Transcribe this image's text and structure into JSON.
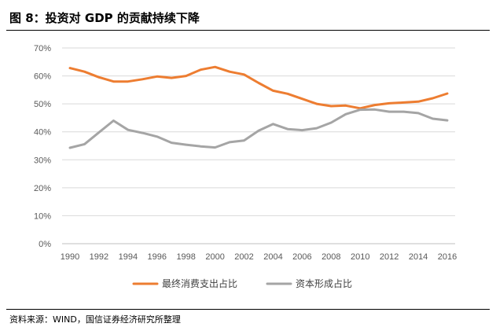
{
  "title": "图 8：投资对 GDP 的贡献持续下降",
  "source": "资料来源：WIND，国信证券经济研究所整理",
  "chart_data": {
    "type": "line",
    "title": "图 8：投资对 GDP 的贡献持续下降",
    "xlabel": "",
    "ylabel": "",
    "xlim": [
      1990,
      2016
    ],
    "ylim": [
      0,
      70
    ],
    "x_ticks": [
      "1990",
      "1992",
      "1994",
      "1996",
      "1998",
      "2000",
      "2002",
      "2004",
      "2006",
      "2008",
      "2010",
      "2012",
      "2014",
      "2016"
    ],
    "y_ticks": [
      "0%",
      "10%",
      "20%",
      "30%",
      "40%",
      "50%",
      "60%",
      "70%"
    ],
    "grid": true,
    "legend_position": "bottom",
    "x": [
      1990,
      1991,
      1992,
      1993,
      1994,
      1995,
      1996,
      1997,
      1998,
      1999,
      2000,
      2001,
      2002,
      2003,
      2004,
      2005,
      2006,
      2007,
      2008,
      2009,
      2010,
      2011,
      2012,
      2013,
      2014,
      2015,
      2016
    ],
    "series": [
      {
        "name": "最终消费支出占比",
        "color": "#ED7D31",
        "values": [
          62.8,
          61.5,
          59.5,
          58.0,
          58.0,
          58.8,
          59.8,
          59.3,
          60.0,
          62.2,
          63.2,
          61.5,
          60.5,
          57.5,
          54.7,
          53.6,
          51.8,
          50.0,
          49.2,
          49.4,
          48.4,
          49.6,
          50.2,
          50.5,
          50.8,
          52.0,
          53.7
        ]
      },
      {
        "name": "资本形成占比",
        "color": "#A5A5A5",
        "values": [
          34.3,
          35.6,
          39.8,
          44.0,
          40.7,
          39.6,
          38.3,
          36.1,
          35.4,
          34.8,
          34.4,
          36.3,
          36.9,
          40.4,
          42.8,
          41.0,
          40.6,
          41.3,
          43.3,
          46.3,
          47.9,
          48.0,
          47.2,
          47.2,
          46.7,
          44.7,
          44.1
        ]
      }
    ]
  }
}
